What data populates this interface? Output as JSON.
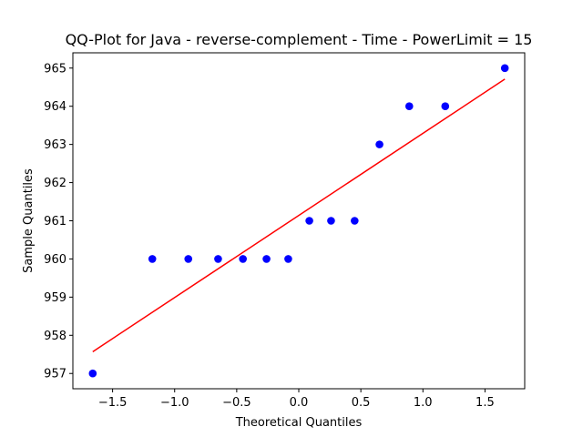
{
  "chart_data": {
    "type": "scatter",
    "title": "QQ-Plot for Java - reverse-complement - Time - PowerLimit = 15",
    "xlabel": "Theoretical Quantiles",
    "ylabel": "Sample Quantiles",
    "xlim": [
      -1.82,
      1.82
    ],
    "ylim": [
      956.6,
      965.4
    ],
    "xticks": [
      -1.5,
      -1.0,
      -0.5,
      0.0,
      0.5,
      1.0,
      1.5
    ],
    "xtick_labels": [
      "−1.5",
      "−1.0",
      "−0.5",
      "0.0",
      "0.5",
      "1.0",
      "1.5"
    ],
    "yticks": [
      957,
      958,
      959,
      960,
      961,
      962,
      963,
      964,
      965
    ],
    "ytick_labels": [
      "957",
      "958",
      "959",
      "960",
      "961",
      "962",
      "963",
      "964",
      "965"
    ],
    "grid": false,
    "series": [
      {
        "kind": "points",
        "color": "#0000ff",
        "x": [
          -1.66,
          -1.18,
          -0.89,
          -0.65,
          -0.45,
          -0.26,
          -0.085,
          0.085,
          0.26,
          0.45,
          0.65,
          0.89,
          1.18,
          1.66
        ],
        "y": [
          957,
          960,
          960,
          960,
          960,
          960,
          960,
          961,
          961,
          961,
          963,
          964,
          964,
          965
        ]
      },
      {
        "kind": "line",
        "color": "#ff0000",
        "x": [
          -1.66,
          1.66
        ],
        "y": [
          957.57,
          964.71
        ]
      }
    ]
  }
}
